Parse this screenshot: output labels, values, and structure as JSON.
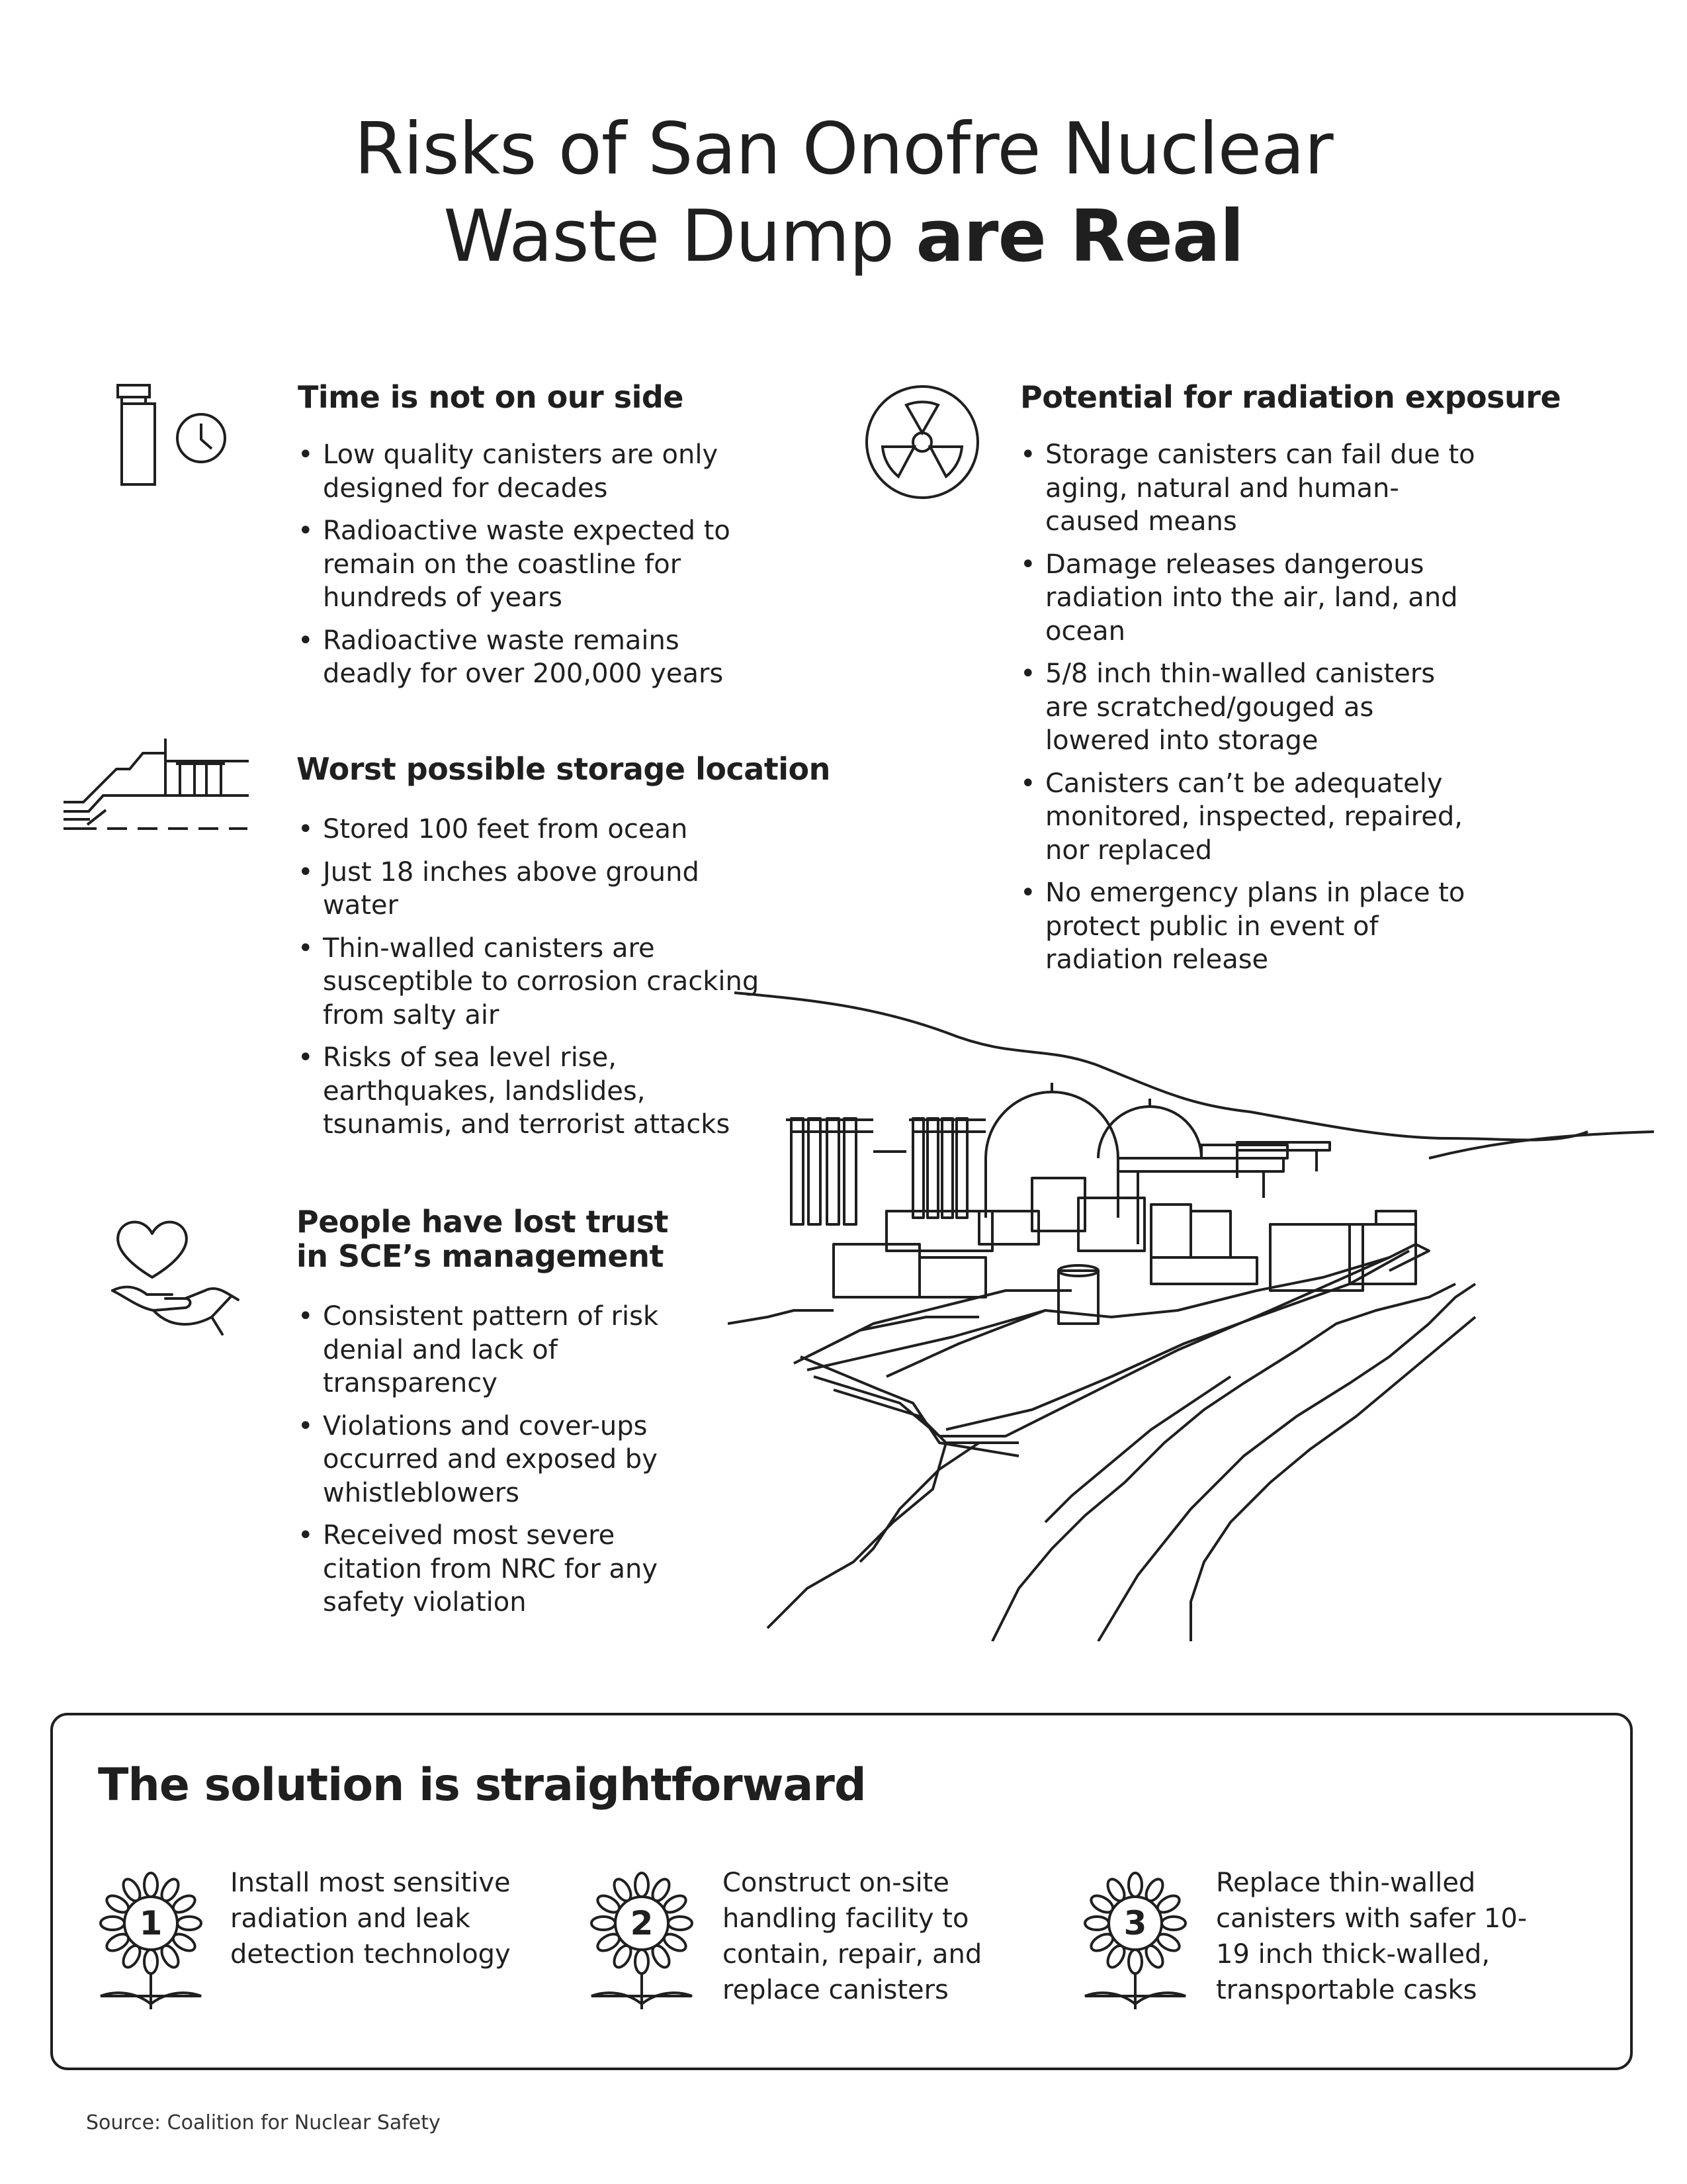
{
  "title": {
    "line1": "Risks of San Onofre Nuclear",
    "line2_regular": "Waste Dump ",
    "line2_bold": "are Real"
  },
  "sections": {
    "time": {
      "icon": "canister-clock-icon",
      "heading": "Time is not on our side",
      "bullets": [
        "Low quality canisters are only designed for decades",
        "Radioactive waste expected to remain on the coastline for hundreds of years",
        "Radioactive waste remains deadly for over 200,000 years"
      ]
    },
    "location": {
      "icon": "coastal-storage-icon",
      "heading": "Worst possible storage location",
      "bullets": [
        "Stored 100 feet from ocean",
        "Just 18 inches above ground water",
        "Thin-walled canisters are susceptible to corrosion cracking from salty air",
        "Risks of sea level rise, earthquakes, landslides, tsunamis, and terrorist attacks"
      ]
    },
    "trust": {
      "icon": "heart-hand-icon",
      "heading": "People have lost trust in SCE’s management",
      "bullets": [
        "Consistent pattern of risk denial and lack of transparency",
        "Violations and cover-ups occurred and exposed by whistleblowers",
        "Received most severe citation from NRC for any safety violation"
      ]
    },
    "radiation": {
      "icon": "radiation-icon",
      "heading": "Potential for radiation exposure",
      "bullets": [
        "Storage canisters can fail due to aging, natural and human-caused means",
        "Damage releases dangerous radiation into the air, land, and ocean",
        "5/8 inch thin-walled canisters are scratched/gouged as lowered into storage",
        "Canisters can’t be adequately monitored, inspected, repaired, nor replaced",
        "No emergency plans in place to protect public in event of radiation release"
      ]
    }
  },
  "illustration": "nuclear-plant-illustration",
  "solution": {
    "heading": "The solution is straightforward",
    "steps": [
      {
        "number": "1",
        "icon": "flower-icon",
        "text": "Install most sensitive radiation and leak detection technology"
      },
      {
        "number": "2",
        "icon": "flower-icon",
        "text": "Construct on-site handling facility to contain, repair, and replace canisters"
      },
      {
        "number": "3",
        "icon": "flower-icon",
        "text": "Replace thin-walled canisters with safer 10-19 inch thick-walled, transportable casks"
      }
    ]
  },
  "source": "Source: Coalition for Nuclear Safety"
}
